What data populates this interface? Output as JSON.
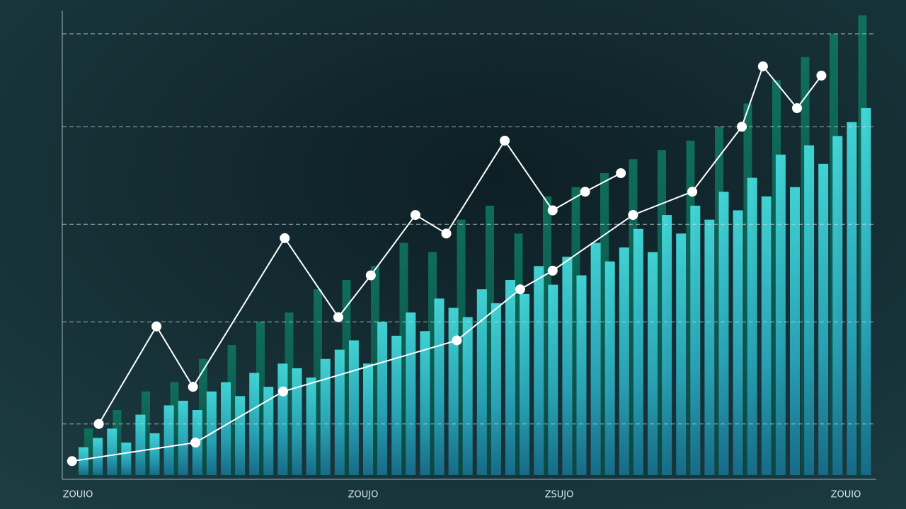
{
  "chart_data": {
    "type": "bar-line",
    "xlim": [
      0,
      100
    ],
    "ylim": [
      0,
      100
    ],
    "yticks": [
      11,
      33,
      54,
      75,
      95
    ],
    "grid": true,
    "x_labels": [
      "ZOUIO",
      "ZOUJO",
      "ZSUJO",
      "ZOUIO"
    ],
    "bar_series": [
      {
        "color": "#0f6b5a",
        "values": [
          10,
          14,
          18,
          20,
          25,
          28,
          33,
          35,
          40,
          42,
          45,
          50,
          48,
          55,
          58,
          52,
          60,
          62,
          65,
          68,
          70,
          72,
          75,
          80,
          85,
          90,
          95,
          99
        ]
      },
      {
        "color": "#3fd8d8",
        "values": [
          6,
          8,
          10,
          7,
          13,
          9,
          15,
          16,
          14,
          18,
          20,
          17,
          22,
          19,
          24,
          23,
          21,
          25,
          27,
          29,
          24,
          33,
          30,
          35,
          31,
          38,
          36,
          34,
          40,
          37,
          42,
          39,
          45,
          41,
          47,
          43,
          50,
          46,
          49,
          53,
          48,
          56,
          52,
          58,
          55,
          61,
          57,
          64,
          60,
          69,
          62,
          71,
          67,
          73,
          76,
          79
        ]
      }
    ],
    "series": [
      {
        "color": "#ffffff",
        "x": [
          4.5,
          11.6,
          16.1,
          27.4,
          34.0,
          38.0,
          43.5,
          47.3,
          54.5,
          60.4,
          64.4,
          68.8
        ],
        "values": [
          11,
          32,
          19,
          51,
          34,
          43,
          56,
          52,
          72,
          57,
          61,
          65
        ]
      },
      {
        "color": "#ffffff",
        "x": [
          1.2,
          16.4,
          27.2,
          48.6,
          56.4,
          60.4,
          70.3,
          77.6,
          83.7,
          86.3,
          90.5,
          93.5
        ],
        "values": [
          3,
          7,
          18,
          29,
          40,
          44,
          56,
          61,
          75,
          88,
          79,
          86
        ]
      }
    ]
  }
}
